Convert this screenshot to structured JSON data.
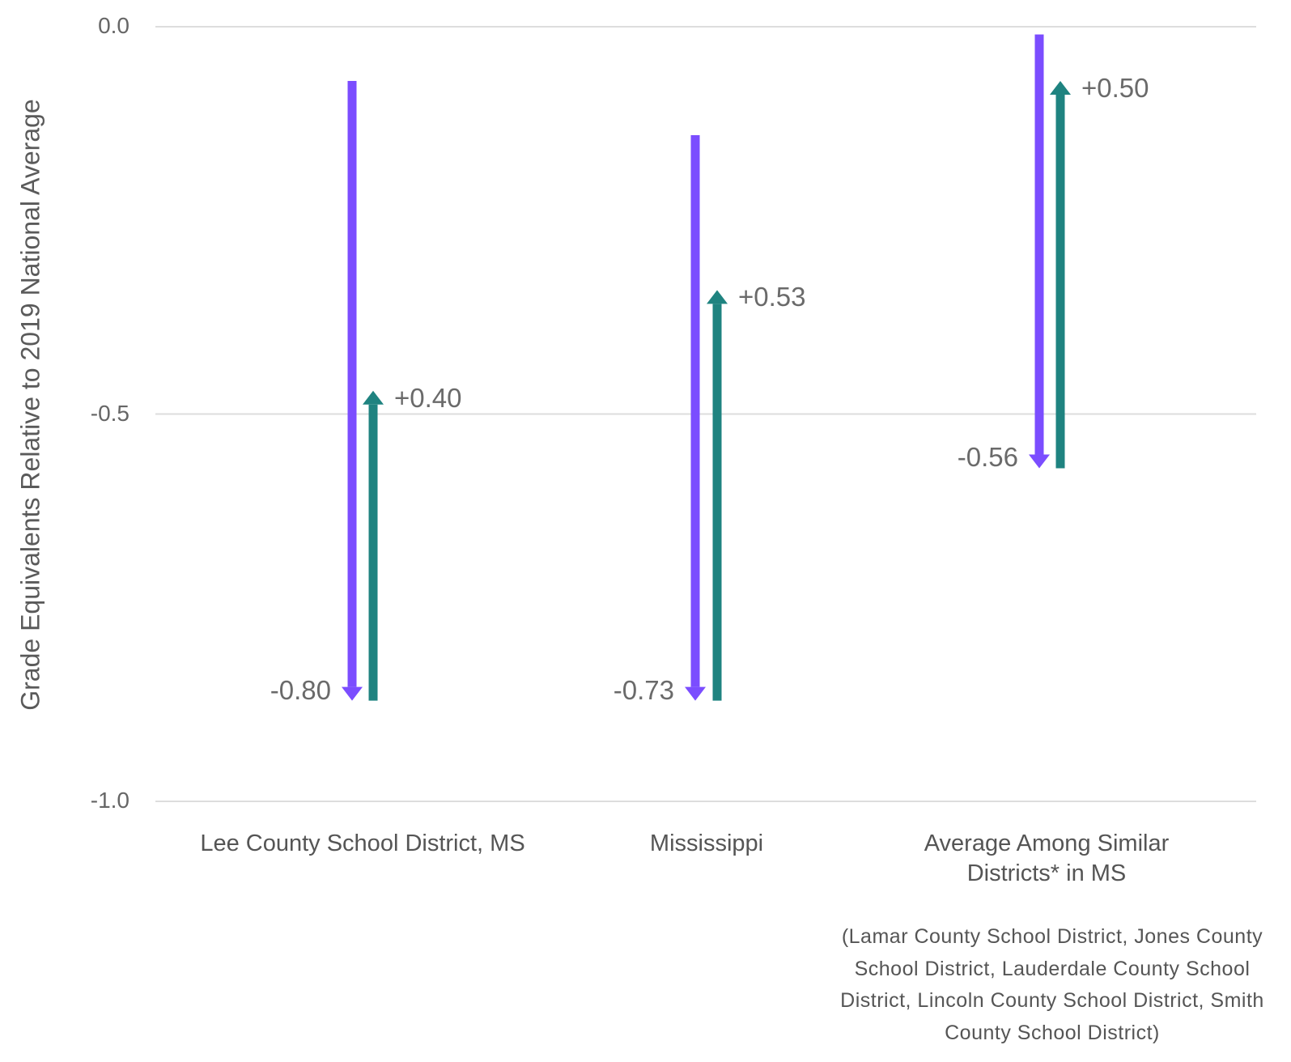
{
  "colors": {
    "decline": "#7b4dff",
    "recovery": "#1f8380",
    "grid": "#dddddd",
    "text": "#555555"
  },
  "chart_data": {
    "type": "arrow",
    "ylabel": "Grade Equivalents Relative to 2019 National Average",
    "ylim": [
      -1.0,
      0.0
    ],
    "yticks": [
      "0.0",
      "-0.5",
      "-1.0"
    ],
    "grid": true,
    "groups": [
      {
        "category": "Lee County School District, MS",
        "start": -0.07,
        "low": -0.87,
        "end": -0.47,
        "decline_label": "-0.80",
        "recovery_label": "+0.40"
      },
      {
        "category": "Mississippi",
        "start": -0.14,
        "low": -0.87,
        "end": -0.34,
        "decline_label": "-0.73",
        "recovery_label": "+0.53"
      },
      {
        "category": "Average Among Similar Districts* in MS",
        "start": -0.01,
        "low": -0.57,
        "end": -0.07,
        "decline_label": "-0.56",
        "recovery_label": "+0.50"
      }
    ],
    "note": "(Lamar County School District, Jones County School District, Lauderdale County School District, Lincoln County School District, Smith County School District)"
  }
}
